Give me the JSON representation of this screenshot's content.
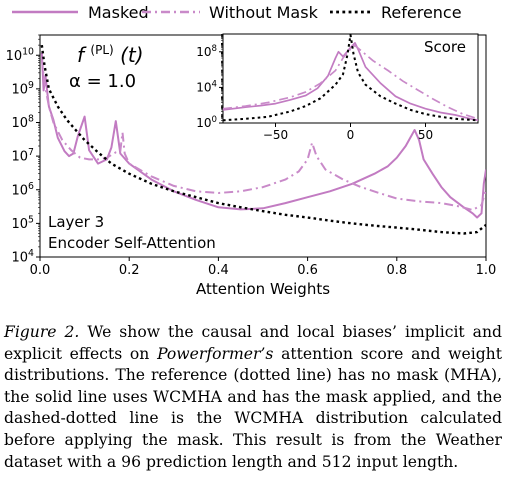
{
  "chart_data": [
    {
      "type": "line",
      "ylog": true,
      "xlim": [
        0,
        1
      ],
      "ylim": [
        10000,
        40000000000
      ],
      "xlabel": "Attention Weights",
      "x_ticks": [
        "0.0",
        "0.2",
        "0.4",
        "0.6",
        "0.8",
        "1.0"
      ],
      "y_ticks": [
        "10^4",
        "10^5",
        "10^6",
        "10^7",
        "10^8",
        "10^9",
        "10^10"
      ],
      "formula": {
        "f": "f",
        "sup": "(PL)",
        "arg": "(t)",
        "alpha": "α = 1.0"
      },
      "annotation": [
        "Layer 3",
        "Encoder Self-Attention"
      ],
      "legend": [
        "Masked",
        "Without Mask",
        "Reference"
      ],
      "colors": {
        "masked": "#c27bc2",
        "without_mask": "#c98ac9",
        "reference": "#000000"
      },
      "series": [
        {
          "name": "Masked",
          "style": "solid",
          "points": [
            [
              0.004,
              12000000000
            ],
            [
              0.008,
              900000000
            ],
            [
              0.012,
              2500000000
            ],
            [
              0.02,
              300000000
            ],
            [
              0.03,
              120000000
            ],
            [
              0.04,
              35000000
            ],
            [
              0.055,
              14000000
            ],
            [
              0.065,
              10000000
            ],
            [
              0.075,
              12000000
            ],
            [
              0.085,
              40000000
            ],
            [
              0.1,
              150000000
            ],
            [
              0.11,
              15000000
            ],
            [
              0.13,
              6000000
            ],
            [
              0.15,
              8000000
            ],
            [
              0.16,
              18000000
            ],
            [
              0.17,
              110000000
            ],
            [
              0.18,
              12000000
            ],
            [
              0.2,
              6000000
            ],
            [
              0.25,
              2000000
            ],
            [
              0.3,
              900000
            ],
            [
              0.35,
              500000
            ],
            [
              0.4,
              300000
            ],
            [
              0.45,
              260000
            ],
            [
              0.5,
              280000
            ],
            [
              0.55,
              400000
            ],
            [
              0.6,
              600000
            ],
            [
              0.65,
              900000
            ],
            [
              0.7,
              1500000
            ],
            [
              0.75,
              3000000
            ],
            [
              0.78,
              5000000
            ],
            [
              0.8,
              9000000
            ],
            [
              0.82,
              20000000
            ],
            [
              0.84,
              60000000
            ],
            [
              0.85,
              30000000
            ],
            [
              0.86,
              8000000
            ],
            [
              0.88,
              3000000
            ],
            [
              0.9,
              1200000
            ],
            [
              0.92,
              600000
            ],
            [
              0.95,
              300000
            ],
            [
              0.97,
              200000
            ],
            [
              0.98,
              150000
            ],
            [
              0.99,
              200000
            ],
            [
              0.995,
              1500000
            ],
            [
              1.0,
              4000000
            ]
          ]
        },
        {
          "name": "Without Mask",
          "style": "dashdot",
          "points": [
            [
              0.004,
              8000000000
            ],
            [
              0.01,
              1500000000
            ],
            [
              0.02,
              300000000
            ],
            [
              0.03,
              100000000
            ],
            [
              0.05,
              30000000
            ],
            [
              0.07,
              15000000
            ],
            [
              0.09,
              9000000
            ],
            [
              0.11,
              8000000
            ],
            [
              0.13,
              8000000
            ],
            [
              0.15,
              9000000
            ],
            [
              0.17,
              13000000
            ],
            [
              0.18,
              14000000
            ],
            [
              0.185,
              50000000
            ],
            [
              0.19,
              12000000
            ],
            [
              0.2,
              6000000
            ],
            [
              0.25,
              2500000
            ],
            [
              0.3,
              1300000
            ],
            [
              0.35,
              900000
            ],
            [
              0.4,
              800000
            ],
            [
              0.45,
              900000
            ],
            [
              0.5,
              1200000
            ],
            [
              0.55,
              2000000
            ],
            [
              0.58,
              3500000
            ],
            [
              0.6,
              8000000
            ],
            [
              0.61,
              25000000
            ],
            [
              0.62,
              10000000
            ],
            [
              0.64,
              4000000
            ],
            [
              0.68,
              2000000
            ],
            [
              0.72,
              1200000
            ],
            [
              0.76,
              800000
            ],
            [
              0.8,
              550000
            ],
            [
              0.85,
              450000
            ],
            [
              0.9,
              400000
            ],
            [
              0.94,
              320000
            ],
            [
              0.97,
              250000
            ],
            [
              0.99,
              350000
            ],
            [
              1.0,
              1000000
            ]
          ]
        },
        {
          "name": "Reference",
          "style": "dotted",
          "points": [
            [
              0.004,
              20000000000
            ],
            [
              0.01,
              5000000000
            ],
            [
              0.02,
              1000000000
            ],
            [
              0.04,
              300000000
            ],
            [
              0.06,
              120000000
            ],
            [
              0.08,
              60000000
            ],
            [
              0.1,
              30000000
            ],
            [
              0.13,
              13000000
            ],
            [
              0.16,
              6000000
            ],
            [
              0.2,
              3000000
            ],
            [
              0.25,
              1500000
            ],
            [
              0.3,
              900000
            ],
            [
              0.35,
              600000
            ],
            [
              0.4,
              400000
            ],
            [
              0.45,
              300000
            ],
            [
              0.5,
              230000
            ],
            [
              0.55,
              180000
            ],
            [
              0.6,
              150000
            ],
            [
              0.65,
              120000
            ],
            [
              0.7,
              100000
            ],
            [
              0.75,
              85000
            ],
            [
              0.8,
              75000
            ],
            [
              0.85,
              65000
            ],
            [
              0.9,
              55000
            ],
            [
              0.95,
              50000
            ],
            [
              0.98,
              55000
            ],
            [
              1.0,
              90000
            ]
          ]
        }
      ]
    },
    {
      "type": "line",
      "inset": true,
      "title": "Score",
      "ylog": true,
      "xlim": [
        -85,
        85
      ],
      "ylim": [
        1,
        10000000000
      ],
      "x_ticks": [
        "−50",
        "0",
        "50"
      ],
      "y_ticks": [
        "10^0",
        "10^4",
        "10^8"
      ],
      "series": [
        {
          "name": "Masked",
          "style": "solid",
          "points": [
            [
              -85,
              30
            ],
            [
              -70,
              60
            ],
            [
              -60,
              90
            ],
            [
              -50,
              150
            ],
            [
              -40,
              400
            ],
            [
              -30,
              1200
            ],
            [
              -22,
              8000
            ],
            [
              -15,
              200000
            ],
            [
              -10,
              20000000
            ],
            [
              -8,
              100000000
            ],
            [
              -5,
              30000000
            ],
            [
              0,
              300000000
            ],
            [
              3,
              1000000000
            ],
            [
              5,
              200000000
            ],
            [
              10,
              2000000
            ],
            [
              20,
              30000
            ],
            [
              30,
              1000
            ],
            [
              40,
              150
            ],
            [
              50,
              40
            ],
            [
              60,
              15
            ],
            [
              70,
              8
            ],
            [
              80,
              3
            ],
            [
              85,
              2
            ]
          ]
        },
        {
          "name": "Without Mask",
          "style": "dashdot",
          "points": [
            [
              -85,
              40
            ],
            [
              -70,
              80
            ],
            [
              -55,
              200
            ],
            [
              -40,
              800
            ],
            [
              -30,
              3000
            ],
            [
              -20,
              30000
            ],
            [
              -10,
              800000
            ],
            [
              -5,
              20000000
            ],
            [
              0,
              200000000
            ],
            [
              3,
              500000000
            ],
            [
              8,
              100000000
            ],
            [
              15,
              10000000
            ],
            [
              25,
              800000
            ],
            [
              35,
              50000
            ],
            [
              45,
              5000
            ],
            [
              55,
              500
            ],
            [
              65,
              60
            ],
            [
              75,
              10
            ],
            [
              85,
              3
            ]
          ]
        },
        {
          "name": "Reference",
          "style": "dotted",
          "points": [
            [
              -85,
              2
            ],
            [
              -70,
              3
            ],
            [
              -55,
              5
            ],
            [
              -40,
              20
            ],
            [
              -30,
              80
            ],
            [
              -20,
              600
            ],
            [
              -10,
              20000
            ],
            [
              -5,
              300000
            ],
            [
              -2,
              50000000
            ],
            [
              0,
              8000000000
            ],
            [
              2,
              60000000
            ],
            [
              5,
              500000
            ],
            [
              10,
              20000
            ],
            [
              20,
              1000
            ],
            [
              30,
              150
            ],
            [
              40,
              30
            ],
            [
              50,
              10
            ],
            [
              60,
              5
            ],
            [
              70,
              3
            ],
            [
              85,
              2
            ]
          ]
        }
      ]
    }
  ],
  "caption": {
    "label": "Figure 2.",
    "part1": " We show the causal and local biases’ implicit and explicit effects on ",
    "emph": "Powerformer’s",
    "part2": " attention score and weight distributions. The reference (dotted line) has no mask (MHA), the solid line uses WCMHA and has the mask applied, and the dashed-dotted line is the WCMHA distribution calculated before applying the mask. This result is from the Weather dataset with a 96 prediction length and 512 input length."
  }
}
